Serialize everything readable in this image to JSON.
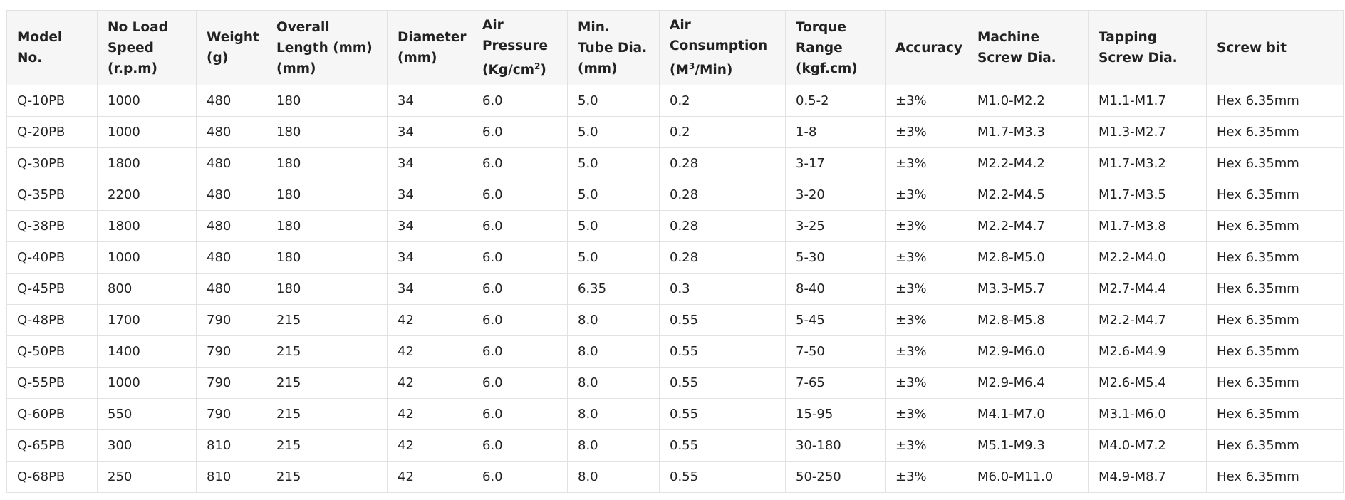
{
  "table": {
    "header": [
      "Model No.",
      "No Load Speed (r.p.m)",
      "Weight (g)",
      "Overall Length (mm) (mm)",
      "Diameter (mm)",
      {
        "text": "Air Pressure (Kg/cm",
        "sup": "2",
        "after": ")"
      },
      "Min. Tube Dia. (mm)",
      {
        "text": "Air Consumption (M",
        "sup": "3",
        "after": "/Min)"
      },
      "Torque Range (kgf.cm)",
      "Accuracy",
      "Machine Screw Dia.",
      "Tapping Screw Dia.",
      "Screw bit"
    ],
    "rows": [
      [
        "Q-10PB",
        "1000",
        "480",
        "180",
        "34",
        "6.0",
        "5.0",
        "0.2",
        "0.5-2",
        "±3%",
        "M1.0-M2.2",
        "M1.1-M1.7",
        "Hex 6.35mm"
      ],
      [
        "Q-20PB",
        "1000",
        "480",
        "180",
        "34",
        "6.0",
        "5.0",
        "0.2",
        "1-8",
        "±3%",
        "M1.7-M3.3",
        "M1.3-M2.7",
        "Hex 6.35mm"
      ],
      [
        "Q-30PB",
        "1800",
        "480",
        "180",
        "34",
        "6.0",
        "5.0",
        "0.28",
        "3-17",
        "±3%",
        "M2.2-M4.2",
        "M1.7-M3.2",
        "Hex 6.35mm"
      ],
      [
        "Q-35PB",
        "2200",
        "480",
        "180",
        "34",
        "6.0",
        "5.0",
        "0.28",
        "3-20",
        "±3%",
        "M2.2-M4.5",
        "M1.7-M3.5",
        "Hex 6.35mm"
      ],
      [
        "Q-38PB",
        "1800",
        "480",
        "180",
        "34",
        "6.0",
        "5.0",
        "0.28",
        "3-25",
        "±3%",
        "M2.2-M4.7",
        "M1.7-M3.8",
        "Hex 6.35mm"
      ],
      [
        "Q-40PB",
        "1000",
        "480",
        "180",
        "34",
        "6.0",
        "5.0",
        "0.28",
        "5-30",
        "±3%",
        "M2.8-M5.0",
        "M2.2-M4.0",
        "Hex 6.35mm"
      ],
      [
        "Q-45PB",
        "800",
        "480",
        "180",
        "34",
        "6.0",
        "6.35",
        "0.3",
        "8-40",
        "±3%",
        "M3.3-M5.7",
        "M2.7-M4.4",
        "Hex 6.35mm"
      ],
      [
        "Q-48PB",
        "1700",
        "790",
        "215",
        "42",
        "6.0",
        "8.0",
        "0.55",
        "5-45",
        "±3%",
        "M2.8-M5.8",
        "M2.2-M4.7",
        "Hex 6.35mm"
      ],
      [
        "Q-50PB",
        "1400",
        "790",
        "215",
        "42",
        "6.0",
        "8.0",
        "0.55",
        "7-50",
        "±3%",
        "M2.9-M6.0",
        "M2.6-M4.9",
        "Hex 6.35mm"
      ],
      [
        "Q-55PB",
        "1000",
        "790",
        "215",
        "42",
        "6.0",
        "8.0",
        "0.55",
        "7-65",
        "±3%",
        "M2.9-M6.4",
        "M2.6-M5.4",
        "Hex 6.35mm"
      ],
      [
        "Q-60PB",
        "550",
        "790",
        "215",
        "42",
        "6.0",
        "8.0",
        "0.55",
        "15-95",
        "±3%",
        "M4.1-M7.0",
        "M3.1-M6.0",
        "Hex 6.35mm"
      ],
      [
        "Q-65PB",
        "300",
        "810",
        "215",
        "42",
        "6.0",
        "8.0",
        "0.55",
        "30-180",
        "±3%",
        "M5.1-M9.3",
        "M4.0-M7.2",
        "Hex 6.35mm"
      ],
      [
        "Q-68PB",
        "250",
        "810",
        "215",
        "42",
        "6.0",
        "8.0",
        "0.55",
        "50-250",
        "±3%",
        "M6.0-M11.0",
        "M4.9-M8.7",
        "Hex 6.35mm"
      ]
    ]
  }
}
